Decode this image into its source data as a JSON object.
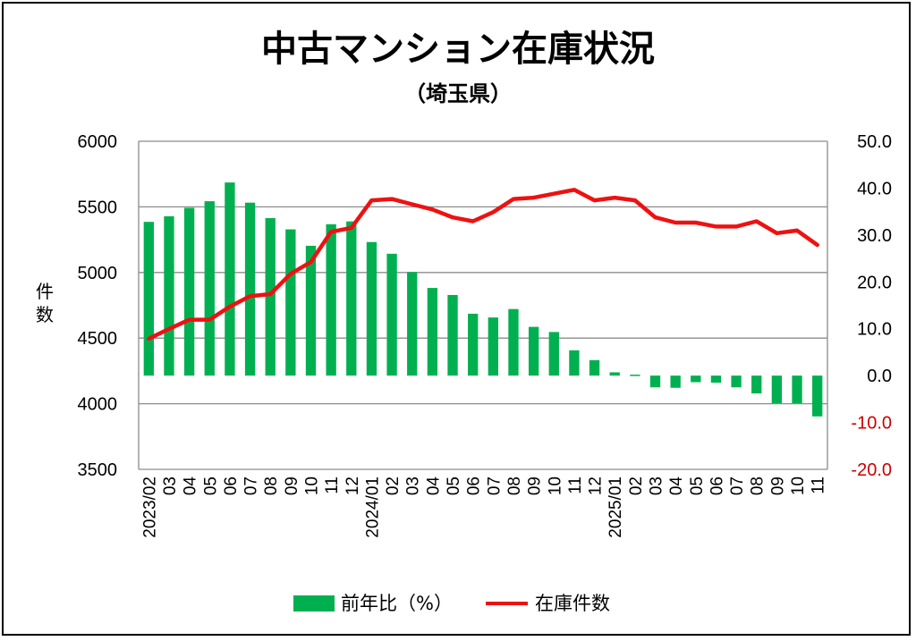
{
  "chart_data": {
    "type": "bar+line",
    "title": "中古マンション在庫状況",
    "subtitle": "（埼玉県）",
    "ylabel": "件数",
    "categories": [
      "2023/02",
      "03",
      "04",
      "05",
      "06",
      "07",
      "08",
      "09",
      "10",
      "11",
      "12",
      "2024/01",
      "02",
      "03",
      "04",
      "05",
      "06",
      "07",
      "08",
      "09",
      "10",
      "11",
      "12",
      "2025/01",
      "02",
      "03",
      "04",
      "05",
      "06",
      "07",
      "08",
      "09",
      "10",
      "11"
    ],
    "left_axis": {
      "min": 3500,
      "max": 6000,
      "step": 500,
      "ticks": [
        "6000",
        "5500",
        "5000",
        "4500",
        "4000",
        "3500"
      ]
    },
    "right_axis": {
      "min": -20,
      "max": 50,
      "step": 10,
      "ticks": [
        "50.0",
        "40.0",
        "30.0",
        "20.0",
        "10.0",
        "0.0",
        "-10.0",
        "-20.0"
      ]
    },
    "series": [
      {
        "name": "前年比（%）",
        "type": "bar",
        "axis": "right",
        "color": "#00b050",
        "values": [
          32.8,
          34.0,
          35.8,
          37.2,
          41.2,
          36.9,
          33.6,
          31.2,
          27.7,
          32.3,
          32.9,
          28.5,
          26.0,
          22.1,
          18.7,
          17.2,
          13.2,
          12.4,
          14.2,
          10.4,
          9.3,
          5.4,
          3.3,
          0.7,
          0.2,
          -2.5,
          -2.6,
          -1.4,
          -1.5,
          -2.5,
          -3.8,
          -5.9,
          -5.9,
          -8.7
        ]
      },
      {
        "name": "在庫件数",
        "type": "line",
        "axis": "left",
        "color": "#ee1111",
        "values": [
          4495,
          4570,
          4640,
          4640,
          4740,
          4820,
          4835,
          4990,
          5080,
          5310,
          5340,
          5550,
          5560,
          5520,
          5480,
          5420,
          5390,
          5460,
          5560,
          5570,
          5600,
          5630,
          5550,
          5570,
          5550,
          5420,
          5380,
          5380,
          5350,
          5350,
          5390,
          5300,
          5320,
          5210
        ]
      }
    ],
    "legend": [
      "前年比（%）",
      "在庫件数"
    ],
    "legend_position": "bottom-center",
    "grid": true
  }
}
